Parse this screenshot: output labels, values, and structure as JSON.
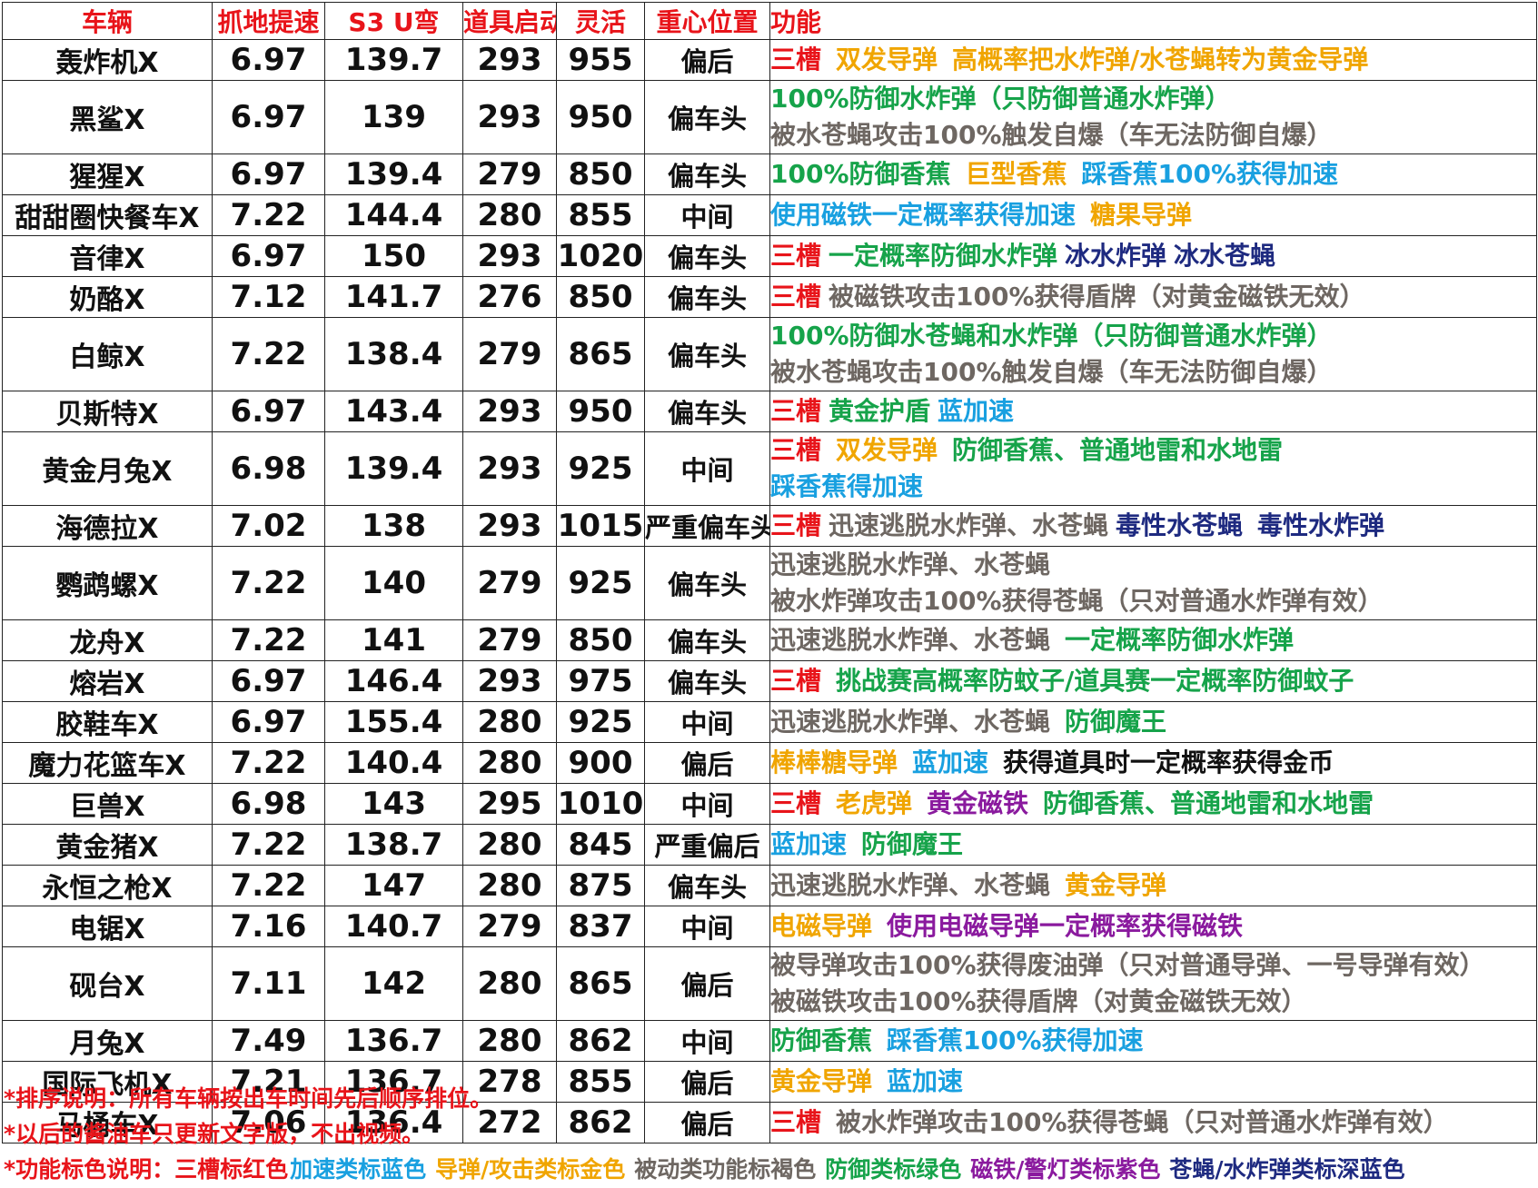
{
  "headers": [
    "车辆",
    "抓地提速",
    "S3 U弯",
    "道具启动",
    "灵活",
    "重心位置",
    "功能"
  ],
  "palette": {
    "red": "#e8141a",
    "orange": "#f0a500",
    "green": "#16a34a",
    "blue": "#19a0e0",
    "navy": "#1e2a80",
    "gray": "#6e6762",
    "purple": "#8a1a9e",
    "black": "#111111"
  },
  "rows": [
    {
      "name": "轰炸机X",
      "grip": "6.97",
      "u_turn": "139.7",
      "item_start": "293",
      "agility": "955",
      "cog": "偏后",
      "features": [
        [
          {
            "t": "三槽",
            "c": "red"
          },
          {
            "t": "双发导弹",
            "c": "orange"
          },
          {
            "t": "高概率把水炸弹/水苍蝇转为黄金导弹",
            "c": "orange"
          }
        ]
      ]
    },
    {
      "name": "黑鲨X",
      "grip": "6.97",
      "u_turn": "139",
      "item_start": "293",
      "agility": "950",
      "cog": "偏车头",
      "features": [
        [
          {
            "t": "100%防御水炸弹（只防御普通水炸弹）",
            "c": "green"
          }
        ],
        [
          {
            "t": "被水苍蝇攻击100%触发自爆（车无法防御自爆）",
            "c": "gray"
          }
        ]
      ]
    },
    {
      "name": "猩猩X",
      "grip": "6.97",
      "u_turn": "139.4",
      "item_start": "279",
      "agility": "850",
      "cog": "偏车头",
      "features": [
        [
          {
            "t": "100%防御香蕉",
            "c": "green"
          },
          {
            "t": "巨型香蕉",
            "c": "orange"
          },
          {
            "t": "踩香蕉100%获得加速",
            "c": "blue"
          }
        ]
      ]
    },
    {
      "name": "甜甜圈快餐车X",
      "grip": "7.22",
      "u_turn": "144.4",
      "item_start": "280",
      "agility": "855",
      "cog": "中间",
      "features": [
        [
          {
            "t": "使用磁铁一定概率获得加速",
            "c": "blue"
          },
          {
            "t": "糖果导弹",
            "c": "orange"
          }
        ]
      ]
    },
    {
      "name": "音律X",
      "grip": "6.97",
      "u_turn": "150",
      "item_start": "293",
      "agility": "1020",
      "cog": "偏车头",
      "features": [
        [
          {
            "t": "三槽",
            "c": "red",
            "tight": true
          },
          {
            "t": "一定概率防御水炸弹",
            "c": "green",
            "tight": true
          },
          {
            "t": "冰水炸弹",
            "c": "navy",
            "tight": true
          },
          {
            "t": "冰水苍蝇",
            "c": "navy"
          }
        ]
      ]
    },
    {
      "name": "奶酪X",
      "grip": "7.12",
      "u_turn": "141.7",
      "item_start": "276",
      "agility": "850",
      "cog": "偏车头",
      "features": [
        [
          {
            "t": "三槽",
            "c": "red",
            "tight": true
          },
          {
            "t": "被磁铁攻击100%获得盾牌（对黄金磁铁无效）",
            "c": "gray"
          }
        ]
      ]
    },
    {
      "name": "白鲸X",
      "grip": "7.22",
      "u_turn": "138.4",
      "item_start": "279",
      "agility": "865",
      "cog": "偏车头",
      "features": [
        [
          {
            "t": "100%防御水苍蝇和水炸弹（只防御普通水炸弹）",
            "c": "green"
          }
        ],
        [
          {
            "t": "被水苍蝇攻击100%触发自爆（车无法防御自爆）",
            "c": "gray"
          }
        ]
      ]
    },
    {
      "name": "贝斯特X",
      "grip": "6.97",
      "u_turn": "143.4",
      "item_start": "293",
      "agility": "950",
      "cog": "偏车头",
      "features": [
        [
          {
            "t": "三槽",
            "c": "red",
            "tight": true
          },
          {
            "t": "黄金护盾",
            "c": "green",
            "tight": true
          },
          {
            "t": "蓝加速",
            "c": "blue"
          }
        ]
      ]
    },
    {
      "name": "黄金月兔X",
      "grip": "6.98",
      "u_turn": "139.4",
      "item_start": "293",
      "agility": "925",
      "cog": "中间",
      "features": [
        [
          {
            "t": "三槽",
            "c": "red"
          },
          {
            "t": "双发导弹",
            "c": "orange"
          },
          {
            "t": "防御香蕉、普通地雷和水地雷",
            "c": "green"
          }
        ],
        [
          {
            "t": "踩香蕉得加速",
            "c": "blue"
          }
        ]
      ]
    },
    {
      "name": "海德拉X",
      "grip": "7.02",
      "u_turn": "138",
      "item_start": "293",
      "agility": "1015",
      "cog": "严重偏车头",
      "features": [
        [
          {
            "t": "三槽",
            "c": "red",
            "tight": true
          },
          {
            "t": "迅速逃脱水炸弹、水苍蝇",
            "c": "gray",
            "tight": true
          },
          {
            "t": "毒性水苍蝇",
            "c": "navy"
          },
          {
            "t": "毒性水炸弹",
            "c": "navy"
          }
        ]
      ]
    },
    {
      "name": "鹦鹉螺X",
      "grip": "7.22",
      "u_turn": "140",
      "item_start": "279",
      "agility": "925",
      "cog": "偏车头",
      "features": [
        [
          {
            "t": "迅速逃脱水炸弹、水苍蝇",
            "c": "gray"
          }
        ],
        [
          {
            "t": "被水炸弹攻击100%获得苍蝇（只对普通水炸弹有效）",
            "c": "gray"
          }
        ]
      ]
    },
    {
      "name": "龙舟X",
      "grip": "7.22",
      "u_turn": "141",
      "item_start": "279",
      "agility": "850",
      "cog": "偏车头",
      "features": [
        [
          {
            "t": "迅速逃脱水炸弹、水苍蝇",
            "c": "gray"
          },
          {
            "t": "一定概率防御水炸弹",
            "c": "green"
          }
        ]
      ]
    },
    {
      "name": "熔岩X",
      "grip": "6.97",
      "u_turn": "146.4",
      "item_start": "293",
      "agility": "975",
      "cog": "偏车头",
      "features": [
        [
          {
            "t": "三槽",
            "c": "red"
          },
          {
            "t": "挑战赛高概率防蚊子/道具赛一定概率防御蚊子",
            "c": "green"
          }
        ]
      ]
    },
    {
      "name": "胶鞋车X",
      "grip": "6.97",
      "u_turn": "155.4",
      "item_start": "280",
      "agility": "925",
      "cog": "中间",
      "features": [
        [
          {
            "t": "迅速逃脱水炸弹、水苍蝇",
            "c": "gray"
          },
          {
            "t": "防御魔王",
            "c": "green"
          }
        ]
      ]
    },
    {
      "name": "魔力花篮车X",
      "grip": "7.22",
      "u_turn": "140.4",
      "item_start": "280",
      "agility": "900",
      "cog": "偏后",
      "features": [
        [
          {
            "t": "棒棒糖导弹",
            "c": "orange"
          },
          {
            "t": "蓝加速",
            "c": "blue"
          },
          {
            "t": "获得道具时一定概率获得金币",
            "c": "black"
          }
        ]
      ]
    },
    {
      "name": "巨兽X",
      "grip": "6.98",
      "u_turn": "143",
      "item_start": "295",
      "agility": "1010",
      "cog": "中间",
      "features": [
        [
          {
            "t": "三槽",
            "c": "red"
          },
          {
            "t": "老虎弹",
            "c": "orange"
          },
          {
            "t": "黄金磁铁",
            "c": "purple"
          },
          {
            "t": "防御香蕉、普通地雷和水地雷",
            "c": "green"
          }
        ]
      ]
    },
    {
      "name": "黄金猪X",
      "grip": "7.22",
      "u_turn": "138.7",
      "item_start": "280",
      "agility": "845",
      "cog": "严重偏后",
      "features": [
        [
          {
            "t": "蓝加速",
            "c": "blue"
          },
          {
            "t": "防御魔王",
            "c": "green"
          }
        ]
      ]
    },
    {
      "name": "永恒之枪X",
      "grip": "7.22",
      "u_turn": "147",
      "item_start": "280",
      "agility": "875",
      "cog": "偏车头",
      "features": [
        [
          {
            "t": "迅速逃脱水炸弹、水苍蝇",
            "c": "gray"
          },
          {
            "t": "黄金导弹",
            "c": "orange"
          }
        ]
      ]
    },
    {
      "name": "电锯X",
      "grip": "7.16",
      "u_turn": "140.7",
      "item_start": "279",
      "agility": "837",
      "cog": "中间",
      "features": [
        [
          {
            "t": "电磁导弹",
            "c": "orange"
          },
          {
            "t": "使用电磁导弹一定概率获得磁铁",
            "c": "purple"
          }
        ]
      ]
    },
    {
      "name": "砚台X",
      "grip": "7.11",
      "u_turn": "142",
      "item_start": "280",
      "agility": "865",
      "cog": "偏后",
      "features": [
        [
          {
            "t": "被导弹攻击100%获得废油弹（只对普通导弹、一号导弹有效）",
            "c": "gray"
          }
        ],
        [
          {
            "t": "被磁铁攻击100%获得盾牌（对黄金磁铁无效）",
            "c": "gray"
          }
        ]
      ]
    },
    {
      "name": "月兔X",
      "grip": "7.49",
      "u_turn": "136.7",
      "item_start": "280",
      "agility": "862",
      "cog": "中间",
      "features": [
        [
          {
            "t": "防御香蕉",
            "c": "green"
          },
          {
            "t": "踩香蕉100%获得加速",
            "c": "blue"
          }
        ]
      ]
    },
    {
      "name": "国际飞机X",
      "grip": "7.21",
      "u_turn": "136.7",
      "item_start": "278",
      "agility": "855",
      "cog": "偏后",
      "features": [
        [
          {
            "t": "黄金导弹",
            "c": "orange"
          },
          {
            "t": "蓝加速",
            "c": "blue"
          }
        ]
      ]
    },
    {
      "name": "马桶车X",
      "grip": "7.06",
      "u_turn": "136.4",
      "item_start": "272",
      "agility": "862",
      "cog": "偏后",
      "features": [
        [
          {
            "t": "三槽",
            "c": "red"
          },
          {
            "t": "被水炸弹攻击100%获得苍蝇（只对普通水炸弹有效）",
            "c": "gray"
          }
        ]
      ]
    }
  ],
  "notes": {
    "sort": "*排序说明：所有车辆按出车时间先后顺序排位。",
    "update": "*以后的酱油车只更新文字版，不出视频。",
    "legend_prefix": "*功能标色说明：",
    "legend": [
      {
        "t": "三槽标红色",
        "c": "red"
      },
      {
        "t": "加速类标蓝色",
        "c": "blue"
      },
      {
        "t": "导弹/攻击类标金色",
        "c": "orange"
      },
      {
        "t": "被动类功能标褐色",
        "c": "gray"
      },
      {
        "t": "防御类标绿色",
        "c": "green"
      },
      {
        "t": "磁铁/警灯类标紫色",
        "c": "purple"
      },
      {
        "t": "苍蝇/水炸弹类标深蓝色",
        "c": "navy"
      }
    ]
  }
}
